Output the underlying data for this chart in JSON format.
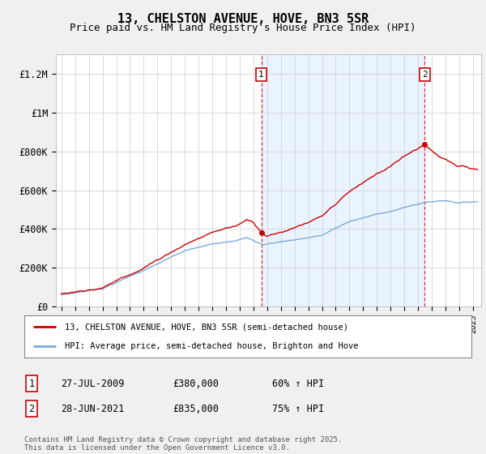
{
  "title": "13, CHELSTON AVENUE, HOVE, BN3 5SR",
  "subtitle": "Price paid vs. HM Land Registry's House Price Index (HPI)",
  "ylim": [
    0,
    1300000
  ],
  "yticks": [
    0,
    200000,
    400000,
    600000,
    800000,
    1000000,
    1200000
  ],
  "ytick_labels": [
    "£0",
    "£200K",
    "£400K",
    "£600K",
    "£800K",
    "£1M",
    "£1.2M"
  ],
  "xlim_start": 1994.6,
  "xlim_end": 2025.6,
  "red_line_color": "#cc0000",
  "blue_line_color": "#7aaadd",
  "vline_color": "#cc0000",
  "shade_color": "#ddeeff",
  "transaction1_x": 2009.57,
  "transaction1_y": 380000,
  "transaction1_label": "1",
  "transaction2_x": 2021.49,
  "transaction2_y": 835000,
  "transaction2_label": "2",
  "legend_line1": "13, CHELSTON AVENUE, HOVE, BN3 5SR (semi-detached house)",
  "legend_line2": "HPI: Average price, semi-detached house, Brighton and Hove",
  "table_row1_num": "1",
  "table_row1_date": "27-JUL-2009",
  "table_row1_price": "£380,000",
  "table_row1_hpi": "60% ↑ HPI",
  "table_row2_num": "2",
  "table_row2_date": "28-JUN-2021",
  "table_row2_price": "£835,000",
  "table_row2_hpi": "75% ↑ HPI",
  "footer": "Contains HM Land Registry data © Crown copyright and database right 2025.\nThis data is licensed under the Open Government Licence v3.0.",
  "background_color": "#f0f0f0",
  "plot_bg_color": "#ffffff"
}
